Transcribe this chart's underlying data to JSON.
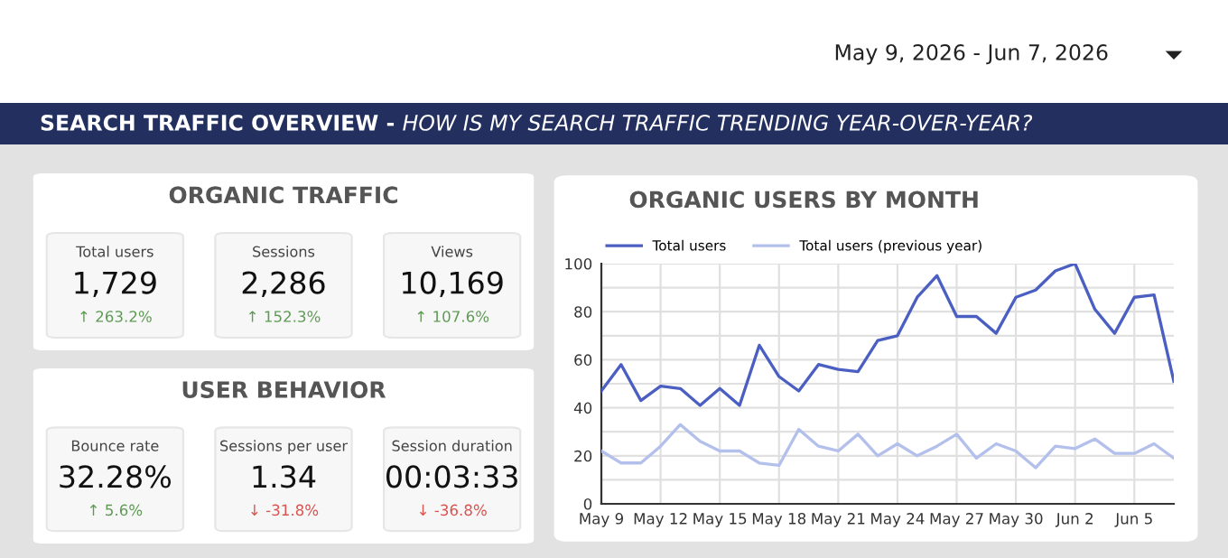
{
  "chart_data": [
    {
      "type": "other",
      "title": "SEARCH TRAFFIC OVERVIEW - ",
      "subtitle": "HOW IS MY SEARCH TRAFFIC TRENDING YEAR-OVER-YEAR?",
      "annotations": [
        "May 9, 2026 - Jun 7, 2026"
      ]
    },
    {
      "type": "other",
      "title": "ORGANIC TRAFFIC",
      "categories": [
        "Total users",
        "Sessions",
        "Views"
      ],
      "annotations": [
        "1,729",
        "2,286",
        "10,169"
      ],
      "values": [
        263.2,
        152.3,
        107.6
      ],
      "value_labels": [
        "↑ 263.2%",
        "↑ 152.3%",
        "↑ 107.6%"
      ]
    },
    {
      "type": "other",
      "title": "USER BEHAVIOR",
      "categories": [
        "Bounce rate",
        "Sessions per user",
        "Session duration"
      ],
      "annotations": [
        "32.28%",
        "1.34",
        "00:03:33"
      ],
      "values": [
        5.6,
        -31.8,
        -36.8
      ],
      "value_labels": [
        "↑ 5.6%",
        "↓ -31.8%",
        "↓ -36.8%"
      ]
    },
    {
      "type": "line",
      "title": "ORGANIC USERS BY MONTH",
      "categories": [
        "May 9",
        null,
        null,
        "May 12",
        null,
        null,
        "May 15",
        null,
        null,
        "May 18",
        null,
        null,
        "May 21",
        null,
        null,
        "May 24",
        null,
        null,
        "May 27",
        null,
        null,
        "May 30",
        null,
        null,
        "Jun 2",
        null,
        null,
        "Jun 5",
        null,
        null
      ],
      "series": [
        {
          "name": "Total users",
          "color": "#4a5fc1",
          "values": [
            47,
            58,
            43,
            49,
            48,
            41,
            48,
            41,
            66,
            53,
            47,
            58,
            56,
            55,
            68,
            70,
            86,
            95,
            78,
            78,
            71,
            86,
            89,
            97,
            100,
            81,
            71,
            86,
            87,
            51
          ]
        },
        {
          "name": "Total users (previous year)",
          "color": "#b4c0ec",
          "values": [
            22,
            17,
            17,
            24,
            33,
            26,
            22,
            22,
            17,
            16,
            31,
            24,
            22,
            29,
            20,
            25,
            20,
            24,
            29,
            19,
            25,
            22,
            15,
            24,
            23,
            27,
            21,
            21,
            25,
            19
          ]
        }
      ],
      "ylim": [
        0,
        100
      ],
      "yticks": [
        0,
        {
          "value": 10,
          "label": null
        },
        20,
        {
          "value": 30,
          "label": null
        },
        40,
        {
          "value": 50,
          "label": null
        },
        60,
        {
          "value": 70,
          "label": null
        },
        80,
        {
          "value": 90,
          "label": null
        },
        100
      ],
      "grid": true,
      "legend": "top left",
      "marker": "none",
      "line_style": "solid"
    }
  ]
}
